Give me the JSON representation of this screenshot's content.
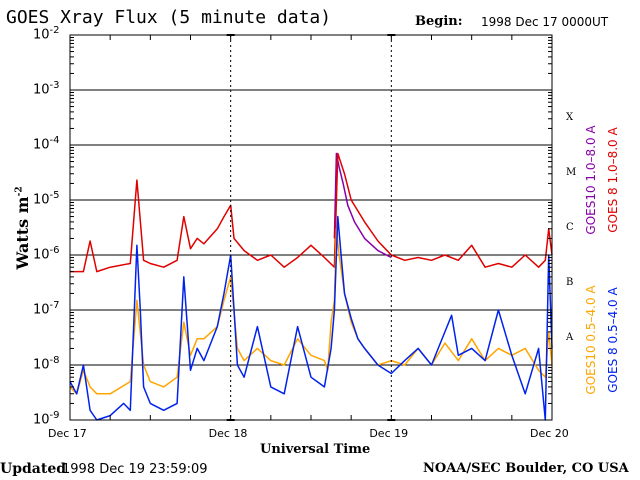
{
  "header": {
    "title": "GOES Xray Flux (5 minute data)",
    "begin_label": "Begin:",
    "begin_value": "1998 Dec 17 0000UT"
  },
  "footer": {
    "updated_label": "Updated",
    "updated_value": "1998 Dec 19 23:59:09",
    "credit": "NOAA/SEC Boulder, CO USA"
  },
  "colors": {
    "goes10_long": "#8800aa",
    "goes8_long": "#e00000",
    "goes10_short": "#ffa500",
    "goes8_short": "#0022ee",
    "grid": "#000000"
  },
  "chart_data": {
    "type": "line",
    "title": "GOES Xray Flux (5 minute data)",
    "xlabel": "Universal Time",
    "ylabel": "Watts m",
    "ylabel_sup": "-2",
    "yscale": "log",
    "ylim": [
      1e-09,
      0.01
    ],
    "y_ticks": [
      {
        "value": 0.01,
        "base": "10",
        "exp": "-2"
      },
      {
        "value": 0.001,
        "base": "10",
        "exp": "-3"
      },
      {
        "value": 0.0001,
        "base": "10",
        "exp": "-4"
      },
      {
        "value": 1e-05,
        "base": "10",
        "exp": "-5"
      },
      {
        "value": 1e-06,
        "base": "10",
        "exp": "-6"
      },
      {
        "value": 1e-07,
        "base": "10",
        "exp": "-7"
      },
      {
        "value": 1e-08,
        "base": "10",
        "exp": "-8"
      },
      {
        "value": 1e-09,
        "base": "10",
        "exp": "-9"
      }
    ],
    "xlim": [
      0,
      72
    ],
    "x_unit": "hours since 1998 Dec 17 00:00 UT",
    "x_ticks": [
      {
        "value": 0,
        "label": "Dec 17"
      },
      {
        "value": 24,
        "label": "Dec 18"
      },
      {
        "value": 48,
        "label": "Dec 19"
      },
      {
        "value": 72,
        "label": "Dec 20"
      }
    ],
    "flare_classes": [
      {
        "label": "X",
        "value": 0.0001
      },
      {
        "label": "M",
        "value": 1e-05
      },
      {
        "label": "C",
        "value": 1e-06
      },
      {
        "label": "B",
        "value": 1e-07
      },
      {
        "label": "A",
        "value": 1e-08
      }
    ],
    "legend_position": "right",
    "series": [
      {
        "name": "GOES10 1.0–8.0 A",
        "color": "#8800aa",
        "x": [
          39.5,
          39.8,
          40.2,
          40.8,
          41.5,
          42.5,
          44,
          46,
          48
        ],
        "y": [
          2e-06,
          7e-05,
          4e-05,
          2e-05,
          8e-06,
          4e-06,
          2e-06,
          1.2e-06,
          9e-07
        ]
      },
      {
        "name": "GOES 8 1.0–8.0 A",
        "color": "#e00000",
        "x": [
          0,
          2,
          3,
          4,
          6,
          9,
          10,
          11,
          12,
          14,
          16,
          17,
          18,
          19,
          20,
          22,
          23,
          24,
          24.5,
          26,
          28,
          30,
          32,
          34,
          36,
          38,
          39.5,
          40,
          41,
          42,
          44,
          46,
          48,
          50,
          52,
          54,
          56,
          58,
          60,
          62,
          64,
          66,
          68,
          70,
          71,
          71.5,
          72
        ],
        "y": [
          5e-07,
          5e-07,
          1.8e-06,
          5e-07,
          6e-07,
          7e-07,
          2.3e-05,
          8e-07,
          7e-07,
          6e-07,
          8e-07,
          5e-06,
          1.3e-06,
          2e-06,
          1.6e-06,
          3e-06,
          5e-06,
          8e-06,
          2e-06,
          1.2e-06,
          8e-07,
          1e-06,
          6e-07,
          9e-07,
          1.5e-06,
          9e-07,
          6e-07,
          7e-05,
          3e-05,
          1e-05,
          4e-06,
          1.8e-06,
          1e-06,
          8e-07,
          9e-07,
          8e-07,
          1e-06,
          8e-07,
          1.5e-06,
          6e-07,
          7e-07,
          6e-07,
          1e-06,
          6e-07,
          8e-07,
          3e-06,
          1e-06
        ]
      },
      {
        "name": "GOES10 0.5–4.0 A",
        "color": "#ffa500",
        "x": [
          0,
          1,
          2,
          3,
          4,
          6,
          9,
          10,
          11,
          12,
          14,
          16,
          17,
          18,
          19,
          20,
          22,
          23,
          24,
          25,
          26,
          28,
          30,
          32,
          34,
          36,
          38,
          38.5,
          39,
          39.5,
          39.8,
          40.2,
          41,
          42,
          43,
          44,
          46,
          48,
          50,
          52,
          54,
          56,
          58,
          60,
          62,
          64,
          66,
          68,
          70,
          71,
          71.5,
          72
        ],
        "y": [
          4e-09,
          3e-09,
          8e-09,
          4e-09,
          3e-09,
          3e-09,
          5e-09,
          1.5e-07,
          1e-08,
          5e-09,
          4e-09,
          6e-09,
          6e-08,
          1.5e-08,
          3e-08,
          3e-08,
          5e-08,
          1.5e-07,
          4e-07,
          2e-08,
          1.2e-08,
          2e-08,
          1.2e-08,
          1e-08,
          3e-08,
          1.5e-08,
          1.2e-08,
          8e-09,
          6e-08,
          1.5e-07,
          3e-06,
          1e-06,
          2e-07,
          6e-08,
          3e-08,
          2e-08,
          1e-08,
          1.2e-08,
          1e-08,
          2e-08,
          1e-08,
          2.5e-08,
          1.2e-08,
          3e-08,
          1.2e-08,
          2e-08,
          1.5e-08,
          2e-08,
          8e-09,
          6e-09,
          4e-08,
          1e-08
        ]
      },
      {
        "name": "GOES 8 0.5–4.0 A",
        "color": "#0022ee",
        "x": [
          0,
          1,
          2,
          3,
          4,
          6,
          8,
          9,
          10,
          10.5,
          11,
          12,
          14,
          16,
          17,
          18,
          19,
          20,
          22,
          23,
          24,
          25,
          26,
          28,
          30,
          32,
          34,
          36,
          38,
          39,
          39.5,
          40,
          40.5,
          41,
          42,
          43,
          44,
          46,
          48,
          50,
          52,
          54,
          56,
          57,
          58,
          60,
          62,
          64,
          66,
          68,
          70,
          71,
          71.5,
          72
        ],
        "y": [
          5e-09,
          3e-09,
          1e-08,
          1.5e-09,
          1e-09,
          1.2e-09,
          2e-09,
          1.5e-09,
          1.5e-06,
          1e-07,
          4e-09,
          2e-09,
          1.5e-09,
          2e-09,
          4e-07,
          8e-09,
          2e-08,
          1.2e-08,
          5e-08,
          2e-07,
          1e-06,
          1e-08,
          6e-09,
          5e-08,
          4e-09,
          3e-09,
          5e-08,
          6e-09,
          4e-09,
          2e-08,
          1e-07,
          5e-06,
          1e-06,
          2e-07,
          7e-08,
          3e-08,
          2e-08,
          1e-08,
          7e-09,
          1.2e-08,
          2e-08,
          1e-08,
          4e-08,
          8e-08,
          1.5e-08,
          2e-08,
          1.2e-08,
          1e-07,
          1.5e-08,
          3e-09,
          2e-08,
          1e-09,
          1e-06,
          2e-08
        ]
      }
    ]
  }
}
